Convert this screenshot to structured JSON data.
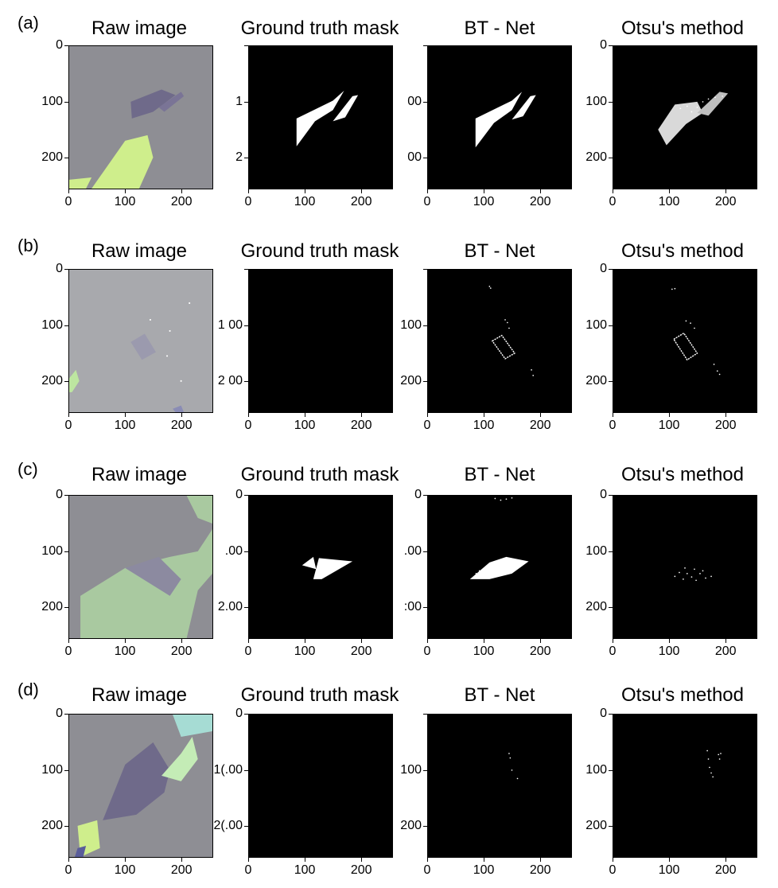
{
  "figure": {
    "rows": [
      {
        "label": "(a)",
        "panels": [
          {
            "title": "Raw image",
            "kind": "raw-image",
            "ylabels": [
              "0",
              "100",
              "200"
            ],
            "xlabels": [
              "0",
              "100",
              "200"
            ]
          },
          {
            "title": "Ground truth mask",
            "kind": "mask",
            "ylabels": [
              "",
              "1",
              "2"
            ],
            "xlabels": [
              "0",
              "100",
              "200"
            ]
          },
          {
            "title": "BT - Net",
            "kind": "mask",
            "ylabels": [
              "",
              "00",
              "00"
            ],
            "xlabels": [
              "0",
              "100",
              "200"
            ]
          },
          {
            "title": "Otsu's method",
            "kind": "mask",
            "ylabels": [
              "0",
              "100",
              "200"
            ],
            "xlabels": [
              "0",
              "100",
              "200"
            ]
          }
        ]
      },
      {
        "label": "(b)",
        "panels": [
          {
            "title": "Raw image",
            "kind": "raw-image",
            "ylabels": [
              "0",
              "100",
              "200"
            ],
            "xlabels": [
              "0",
              "100",
              "200"
            ]
          },
          {
            "title": "Ground truth mask",
            "kind": "mask",
            "ylabels": [
              "",
              "1 00",
              "2 00"
            ],
            "xlabels": [
              "0",
              "100",
              "200"
            ]
          },
          {
            "title": "BT - Net",
            "kind": "mask",
            "ylabels": [
              "",
              "100",
              "200"
            ],
            "xlabels": [
              "0",
              "100",
              "200"
            ]
          },
          {
            "title": "Otsu's method",
            "kind": "mask",
            "ylabels": [
              "0",
              "100",
              "200"
            ],
            "xlabels": [
              "0",
              "100",
              "200"
            ]
          }
        ]
      },
      {
        "label": "(c)",
        "panels": [
          {
            "title": "Raw image",
            "kind": "raw-image",
            "ylabels": [
              "0",
              "100",
              "200"
            ],
            "xlabels": [
              "0",
              "100",
              "200"
            ]
          },
          {
            "title": "Ground truth mask",
            "kind": "mask",
            "ylabels": [
              "0",
              ".00",
              "2.00"
            ],
            "xlabels": [
              "0",
              "100",
              "200"
            ]
          },
          {
            "title": "BT - Net",
            "kind": "mask",
            "ylabels": [
              "0",
              ".00",
              ":00"
            ],
            "xlabels": [
              "0",
              "100",
              "200"
            ]
          },
          {
            "title": "Otsu's method",
            "kind": "mask",
            "ylabels": [
              "0",
              "100",
              "200"
            ],
            "xlabels": [
              "0",
              "100",
              "200"
            ]
          }
        ]
      },
      {
        "label": "(d)",
        "panels": [
          {
            "title": "Raw image",
            "kind": "raw-image",
            "ylabels": [
              "0",
              "100",
              "200"
            ],
            "xlabels": [
              "0",
              "100",
              "200"
            ]
          },
          {
            "title": "Ground truth mask",
            "kind": "mask",
            "ylabels": [
              "0",
              "1(.00",
              "2(.00"
            ],
            "xlabels": [
              "0",
              "100",
              "200"
            ]
          },
          {
            "title": "BT - Net",
            "kind": "mask",
            "ylabels": [
              "",
              "100",
              "200"
            ],
            "xlabels": [
              "0",
              "100",
              "200"
            ]
          },
          {
            "title": "Otsu's method",
            "kind": "mask",
            "ylabels": [
              "0",
              "100",
              "200"
            ],
            "xlabels": [
              "0",
              "100",
              "200"
            ]
          }
        ]
      }
    ]
  },
  "colors": {
    "background_gray": "#8e8e94",
    "flake_purple": "#6f6a8a",
    "flake_yellow_green": "#cfee8c",
    "flake_green": "#a9c9a0",
    "flake_cyan": "#a6dcd4",
    "mask_black": "#000000",
    "mask_white": "#ffffff"
  }
}
